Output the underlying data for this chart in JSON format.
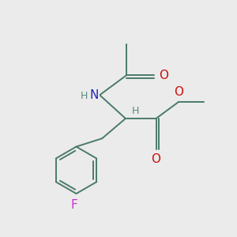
{
  "bg_color": "#ebebeb",
  "bond_color": "#4a7a6a",
  "N_color": "#2222bb",
  "O_color": "#cc1111",
  "F_color": "#cc33cc",
  "H_color": "#5a8a7a",
  "bond_width": 1.4,
  "font_size_atom": 11,
  "font_size_h": 9,
  "figsize": [
    3.0,
    3.0
  ],
  "dpi": 100,
  "xlim": [
    0,
    10
  ],
  "ylim": [
    0,
    10
  ]
}
